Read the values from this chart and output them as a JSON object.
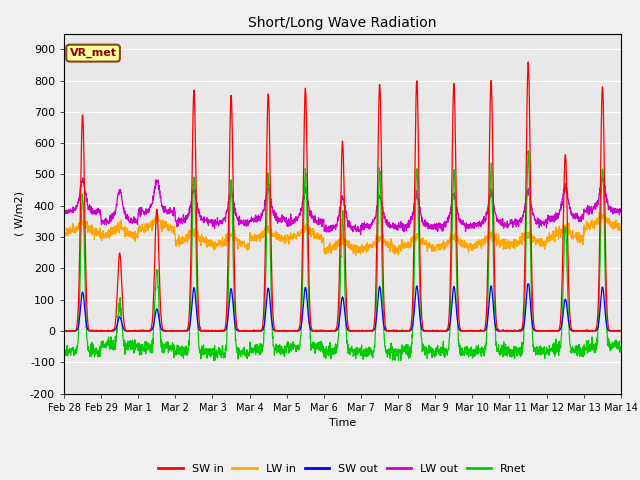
{
  "title": "Short/Long Wave Radiation",
  "xlabel": "Time",
  "ylabel": "( W/m2)",
  "ylim": [
    -200,
    950
  ],
  "yticks": [
    -200,
    -100,
    0,
    100,
    200,
    300,
    400,
    500,
    600,
    700,
    800,
    900
  ],
  "xticklabels": [
    "Feb 28",
    "Feb 29",
    "Mar 1",
    "Mar 2",
    "Mar 3",
    "Mar 4",
    "Mar 5",
    "Mar 6",
    "Mar 7",
    "Mar 8",
    "Mar 9",
    "Mar 10",
    "Mar 11",
    "Mar 12",
    "Mar 13",
    "Mar 14"
  ],
  "colors": {
    "SW_in": "#FF0000",
    "LW_in": "#FFA500",
    "SW_out": "#0000FF",
    "LW_out": "#CC00CC",
    "Rnet": "#00CC00"
  },
  "legend_labels": [
    "SW in",
    "LW in",
    "SW out",
    "LW out",
    "Rnet"
  ],
  "annotation_text": "VR_met",
  "fig_bg_color": "#F0F0F0",
  "plot_bg_color": "#E8E8E8",
  "sw_peaks": [
    690,
    250,
    390,
    770,
    750,
    760,
    775,
    605,
    790,
    800,
    790,
    800,
    860,
    565,
    780
  ],
  "lw_in_base": [
    310,
    300,
    320,
    280,
    270,
    290,
    295,
    255,
    260,
    265,
    265,
    270,
    275,
    295,
    330
  ],
  "lw_out_base": [
    380,
    350,
    380,
    350,
    345,
    355,
    350,
    325,
    335,
    335,
    335,
    340,
    345,
    360,
    385
  ]
}
